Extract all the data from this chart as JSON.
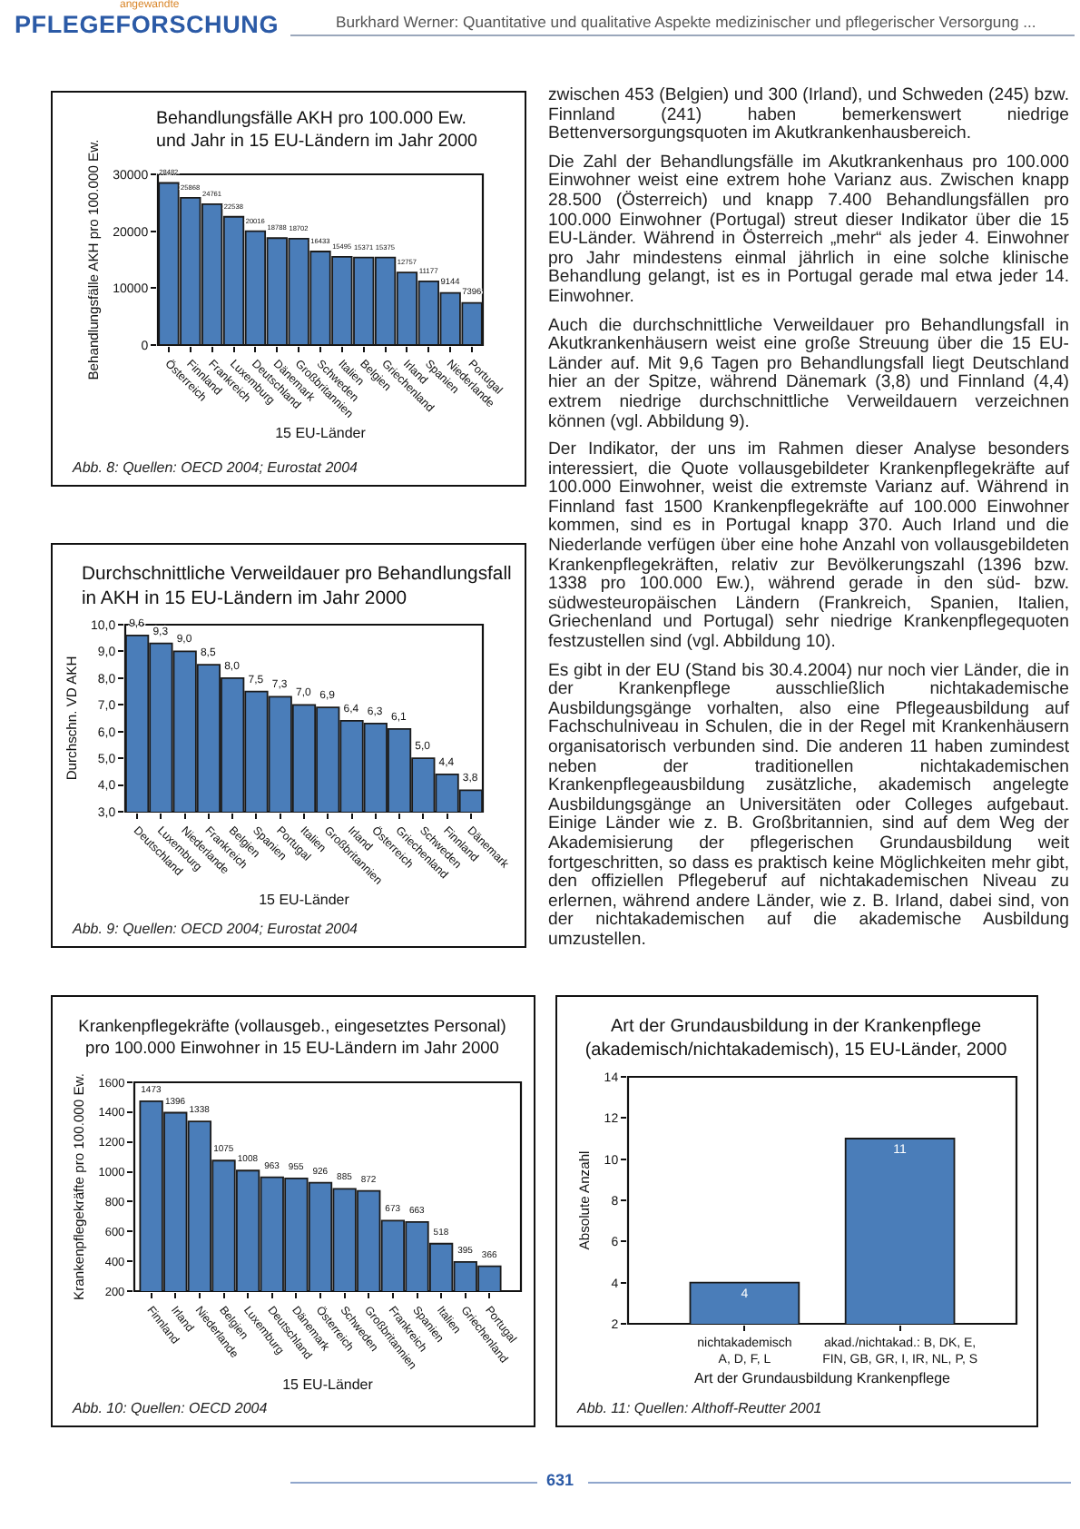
{
  "chart_data": [
    {
      "type": "other",
      "subtitle": "angewandte",
      "title": "PFLEGEFORSCHUNG",
      "annotations": [
        "Burkhard Werner: Quantitative und qualitative Aspekte medizinischer und pflegerischer Versorgung ..."
      ]
    },
    {
      "type": "bar",
      "title": "Behandlungsfälle AKH pro 100.000 Ew.\nund Jahr in 15 EU-Ländern im Jahr 2000",
      "xlabel": "15 EU-Länder",
      "ylabel": "Behandlungsfälle AKH pro 100.000 Ew.",
      "categories": [
        "Österreich",
        "Finnland",
        "Frankreich",
        "Luxemburg",
        "Deutschland",
        "Dänemark",
        "Großbritannien",
        "Schweden",
        "Italien",
        "Belgien",
        "Griechenland",
        "Irland",
        "Spanien",
        "Niederlande",
        "Portugal"
      ],
      "values": [
        28482,
        25868,
        24761,
        22538,
        20016,
        18788,
        18702,
        16433,
        15495,
        15371,
        15375,
        12757,
        11177,
        9144,
        7396
      ],
      "color": "#4a7db9",
      "ylim": [
        0,
        30000
      ],
      "yticks": [
        0,
        10000,
        20000,
        30000
      ],
      "data_labels": true,
      "annotations": [
        "Abb. 8: Quellen: OECD 2004; Eurostat 2004"
      ]
    },
    {
      "type": "bar",
      "title": "Durchschnittliche Verweildauer pro Behandlungsfall\nin AKH in 15 EU-Ländern im Jahr 2000",
      "xlabel": "15 EU-Länder",
      "ylabel": "Durchschn. VD AKH",
      "categories": [
        "Deutschland",
        "Luxemburg",
        "Niederlande",
        "Frankreich",
        "Belgien",
        "Spanien",
        "Portugal",
        "Italien",
        "Großbritannien",
        "Irland",
        "Österreich",
        "Griechenland",
        "Schweden",
        "Finnland",
        "Dänemark"
      ],
      "values": [
        9.6,
        9.3,
        9.0,
        8.5,
        8.0,
        7.5,
        7.3,
        7.0,
        6.9,
        6.4,
        6.3,
        6.1,
        5.0,
        4.4,
        3.8
      ],
      "value_labels": [
        "9,6",
        "9,3",
        "9,0",
        "8,5",
        "8,0",
        "7,5",
        "7,3",
        "7,0",
        "6,9",
        "6,4",
        "6,3",
        "6,1",
        "5,0",
        "4,4",
        "3,8"
      ],
      "color": "#4a7db9",
      "ylim": [
        3,
        10
      ],
      "yticks": [
        {
          "value": 3,
          "label": "3,0"
        },
        {
          "value": 4,
          "label": "4,0"
        },
        {
          "value": 5,
          "label": "5,0"
        },
        {
          "value": 6,
          "label": "6,0"
        },
        {
          "value": 7,
          "label": "7,0"
        },
        {
          "value": 8,
          "label": "8,0"
        },
        {
          "value": 9,
          "label": "9,0"
        },
        {
          "value": 10,
          "label": "10,0"
        }
      ],
      "annotations": [
        "Abb. 9: Quellen: OECD 2004; Eurostat 2004"
      ]
    },
    {
      "type": "other",
      "annotations": [
        "zwischen 453 (Belgien) und 300 (Irland), und Schweden (245) bzw. Finnland (241) haben bemerkenswert niedrige Bettenversorgungsquoten im Akutkrankenhausbereich.",
        "Die Zahl der Behandlungsfälle im Akutkrankenhaus pro 100.000 Einwohner weist eine extrem hohe Varianz aus. Zwischen knapp 28.500 (Österreich) und knapp 7.400 Behandlungsfällen pro 100.000 Einwohner (Portugal) streut dieser Indikator über die 15 EU-Länder. Während in Österreich „mehr“ als jeder 4. Einwohner pro Jahr mindestens einmal jährlich in eine solche klinische Behandlung gelangt, ist es in Portugal gerade mal etwa jeder 14. Einwohner.",
        "Auch die durchschnittliche Verweildauer pro Behandlungsfall in Akutkrankenhäusern weist eine große Streuung über die 15 EU-Länder auf. Mit 9,6 Tagen pro Behandlungsfall liegt Deutschland hier an der Spitze, während Dänemark (3,8) und Finnland (4,4) extrem niedrige durchschnittliche Verweildauern verzeichnen können (vgl. Abbildung 9).",
        "Der Indikator, der uns im Rahmen dieser Analyse besonders interessiert, die Quote vollausgebildeter Krankenpflegekräfte auf 100.000 Einwohner, weist die extremste Varianz auf. Während in Finnland fast 1500 Krankenpflegekräfte auf 100.000 Einwohner kommen, sind es in Portugal knapp 370. Auch Irland und die Niederlande verfügen über eine hohe Anzahl von vollausgebildeten Krankenpflegekräften, relativ zur Bevölkerungszahl (1396 bzw. 1338 pro 100.000 Ew.), während gerade in den süd- bzw. südwesteuropäischen Ländern (Frankreich, Spanien, Italien, Griechenland und Portugal) sehr niedrige Krankenpflegequoten festzustellen sind (vgl. Abbildung 10).",
        "Es gibt in der EU (Stand bis 30.4.2004) nur noch vier Länder, die in der Krankenpflege ausschließlich nichtakademische Ausbildungsgänge vorhalten, also eine Pflegeausbildung auf Fachschulniveau in Schulen, die in der Regel mit Krankenhäusern organisatorisch verbunden sind. Die anderen 11 haben zumindest neben der traditionellen nichtakademischen Krankenpflegeausbildung zusätzliche, akademisch angelegte Ausbildungsgänge an Universitäten oder Colleges aufgebaut. Einige Länder wie z. B. Großbritannien, sind auf dem Weg der Akademisierung der pflegerischen Grundausbildung weit fortgeschritten, so dass es praktisch keine Möglichkeiten mehr gibt, den offiziellen Pflegeberuf auf nichtakademischen Niveau zu erlernen, während andere Länder, wie z. B. Irland, dabei sind, von der nichtakademischen auf die akademische Ausbildung umzustellen."
      ]
    },
    {
      "type": "bar",
      "title": "Krankenpflegekräfte (vollausgeb., eingesetztes Personal)\npro 100.000 Einwohner in 15 EU-Ländern im Jahr 2000",
      "xlabel": "15 EU-Länder",
      "ylabel": "Krankenpflegekräfte pro 100.000 Ew.",
      "categories": [
        "Finnland",
        "Irland",
        "Niederlande",
        "Belgien",
        "Luxemburg",
        "Deutschland",
        "Dänemark",
        "Österreich",
        "Schweden",
        "Großbritannien",
        "Frankreich",
        "Spanien",
        "Italien",
        "Griechenland",
        "Portugal"
      ],
      "values": [
        1473,
        1396,
        1338,
        1075,
        1008,
        963,
        955,
        926,
        885,
        872,
        673,
        663,
        518,
        395,
        366
      ],
      "color": "#4a7db9",
      "ylim": [
        200,
        1600
      ],
      "yticks": [
        200,
        400,
        600,
        800,
        1000,
        1200,
        1400,
        1600
      ],
      "data_labels": true,
      "annotations": [
        "Abb. 10: Quellen: OECD 2004"
      ]
    },
    {
      "type": "bar",
      "title": "Art der Grundausbildung in der Krankenpflege\n(akademisch/nichtakademisch), 15 EU-Länder, 2000",
      "xlabel": "Art der Grundausbildung Krankenpflege",
      "ylabel": "Absolute Anzahl",
      "categories": [
        "nichtakademisch\nA, D, F, L",
        "akad./nichtakad.: B, DK, E,\nFIN, GB, GR, I, IR, NL, P, S"
      ],
      "values": [
        4,
        11
      ],
      "color": "#4a7db9",
      "ylim": [
        2,
        14
      ],
      "yticks": [
        2,
        4,
        6,
        8,
        10,
        12,
        14
      ],
      "data_labels": true,
      "annotations": [
        "Abb. 11: Quellen: Althoff-Reutter 2001"
      ]
    },
    {
      "type": "other",
      "annotations": [
        "631"
      ]
    }
  ]
}
